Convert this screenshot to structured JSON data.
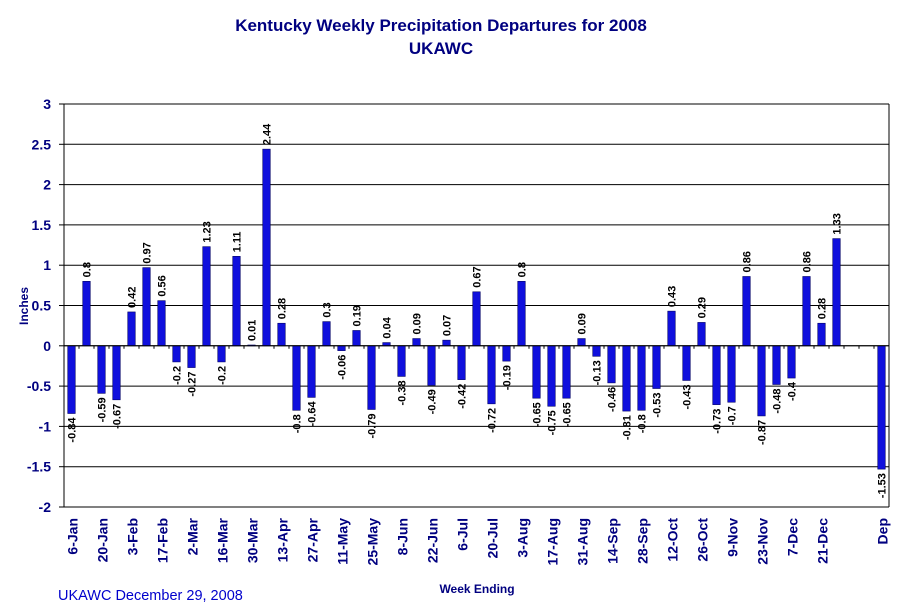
{
  "chart_data": {
    "type": "bar",
    "title": "Kentucky Weekly Precipitation Departures for 2008",
    "subtitle": "UKAWC",
    "xlabel": "Week Ending",
    "ylabel": "Inches",
    "ylim": [
      -2,
      3
    ],
    "yticks": [
      3,
      2.5,
      2,
      1.5,
      1,
      0.5,
      0,
      -0.5,
      -1,
      -1.5,
      -2
    ],
    "grid": true,
    "legend": "none",
    "bar_color": "#1010dd",
    "footer": "UKAWC December 29, 2008",
    "tick_labels": [
      {
        "label": "6-Jan",
        "index": 0
      },
      {
        "label": "20-Jan",
        "index": 2
      },
      {
        "label": "3-Feb",
        "index": 4
      },
      {
        "label": "17-Feb",
        "index": 6
      },
      {
        "label": "2-Mar",
        "index": 8
      },
      {
        "label": "16-Mar",
        "index": 10
      },
      {
        "label": "30-Mar",
        "index": 12
      },
      {
        "label": "13-Apr",
        "index": 14
      },
      {
        "label": "27-Apr",
        "index": 16
      },
      {
        "label": "11-May",
        "index": 18
      },
      {
        "label": "25-May",
        "index": 20
      },
      {
        "label": "8-Jun",
        "index": 22
      },
      {
        "label": "22-Jun",
        "index": 24
      },
      {
        "label": "6-Jul",
        "index": 26
      },
      {
        "label": "20-Jul",
        "index": 28
      },
      {
        "label": "3-Aug",
        "index": 30
      },
      {
        "label": "17-Aug",
        "index": 32
      },
      {
        "label": "31-Aug",
        "index": 34
      },
      {
        "label": "14-Sep",
        "index": 36
      },
      {
        "label": "28-Sep",
        "index": 38
      },
      {
        "label": "12-Oct",
        "index": 40
      },
      {
        "label": "26-Oct",
        "index": 42
      },
      {
        "label": "9-Nov",
        "index": 44
      },
      {
        "label": "23-Nov",
        "index": 46
      },
      {
        "label": "7-Dec",
        "index": 48
      },
      {
        "label": "21-Dec",
        "index": 50
      },
      {
        "label": "Dep",
        "index": 54
      }
    ],
    "values": [
      -0.84,
      0.8,
      -0.59,
      -0.67,
      0.42,
      0.97,
      0.56,
      -0.2,
      -0.27,
      1.23,
      -0.2,
      1.11,
      0.01,
      2.44,
      0.28,
      -0.8,
      -0.64,
      0.3,
      -0.06,
      0.19,
      -0.79,
      0.04,
      -0.38,
      0.09,
      -0.49,
      0.07,
      -0.42,
      0.67,
      -0.72,
      -0.19,
      0.8,
      -0.65,
      -0.75,
      -0.65,
      0.09,
      -0.13,
      -0.46,
      -0.81,
      -0.8,
      -0.53,
      0.43,
      -0.43,
      0.29,
      -0.73,
      -0.7,
      0.86,
      -0.87,
      -0.48,
      -0.4,
      0.86,
      0.28,
      1.33,
      null,
      null,
      -1.53
    ],
    "value_labels": [
      "-0.84",
      "0.8",
      "-0.59",
      "-0.67",
      "0.42",
      "0.97",
      "0.56",
      "-0.2",
      "-0.27",
      "1.23",
      "-0.2",
      "1.11",
      "0.01",
      "2.44",
      "0.28",
      "-0.8",
      "-0.64",
      "0.3",
      "-0.06",
      "0.19",
      "-0.79",
      "0.04",
      "-0.38",
      "0.09",
      "-0.49",
      "0.07",
      "-0.42",
      "0.67",
      "-0.72",
      "-0.19",
      "0.8",
      "-0.65",
      "-0.75",
      "-0.65",
      "0.09",
      "-0.13",
      "-0.46",
      "-0.81",
      "-0.8",
      "-0.53",
      "0.43",
      "-0.43",
      "0.29",
      "-0.73",
      "-0.7",
      "0.86",
      "-0.87",
      "-0.48",
      "-0.4",
      "0.86",
      "0.28",
      "1.33",
      null,
      null,
      "-1.53"
    ]
  }
}
